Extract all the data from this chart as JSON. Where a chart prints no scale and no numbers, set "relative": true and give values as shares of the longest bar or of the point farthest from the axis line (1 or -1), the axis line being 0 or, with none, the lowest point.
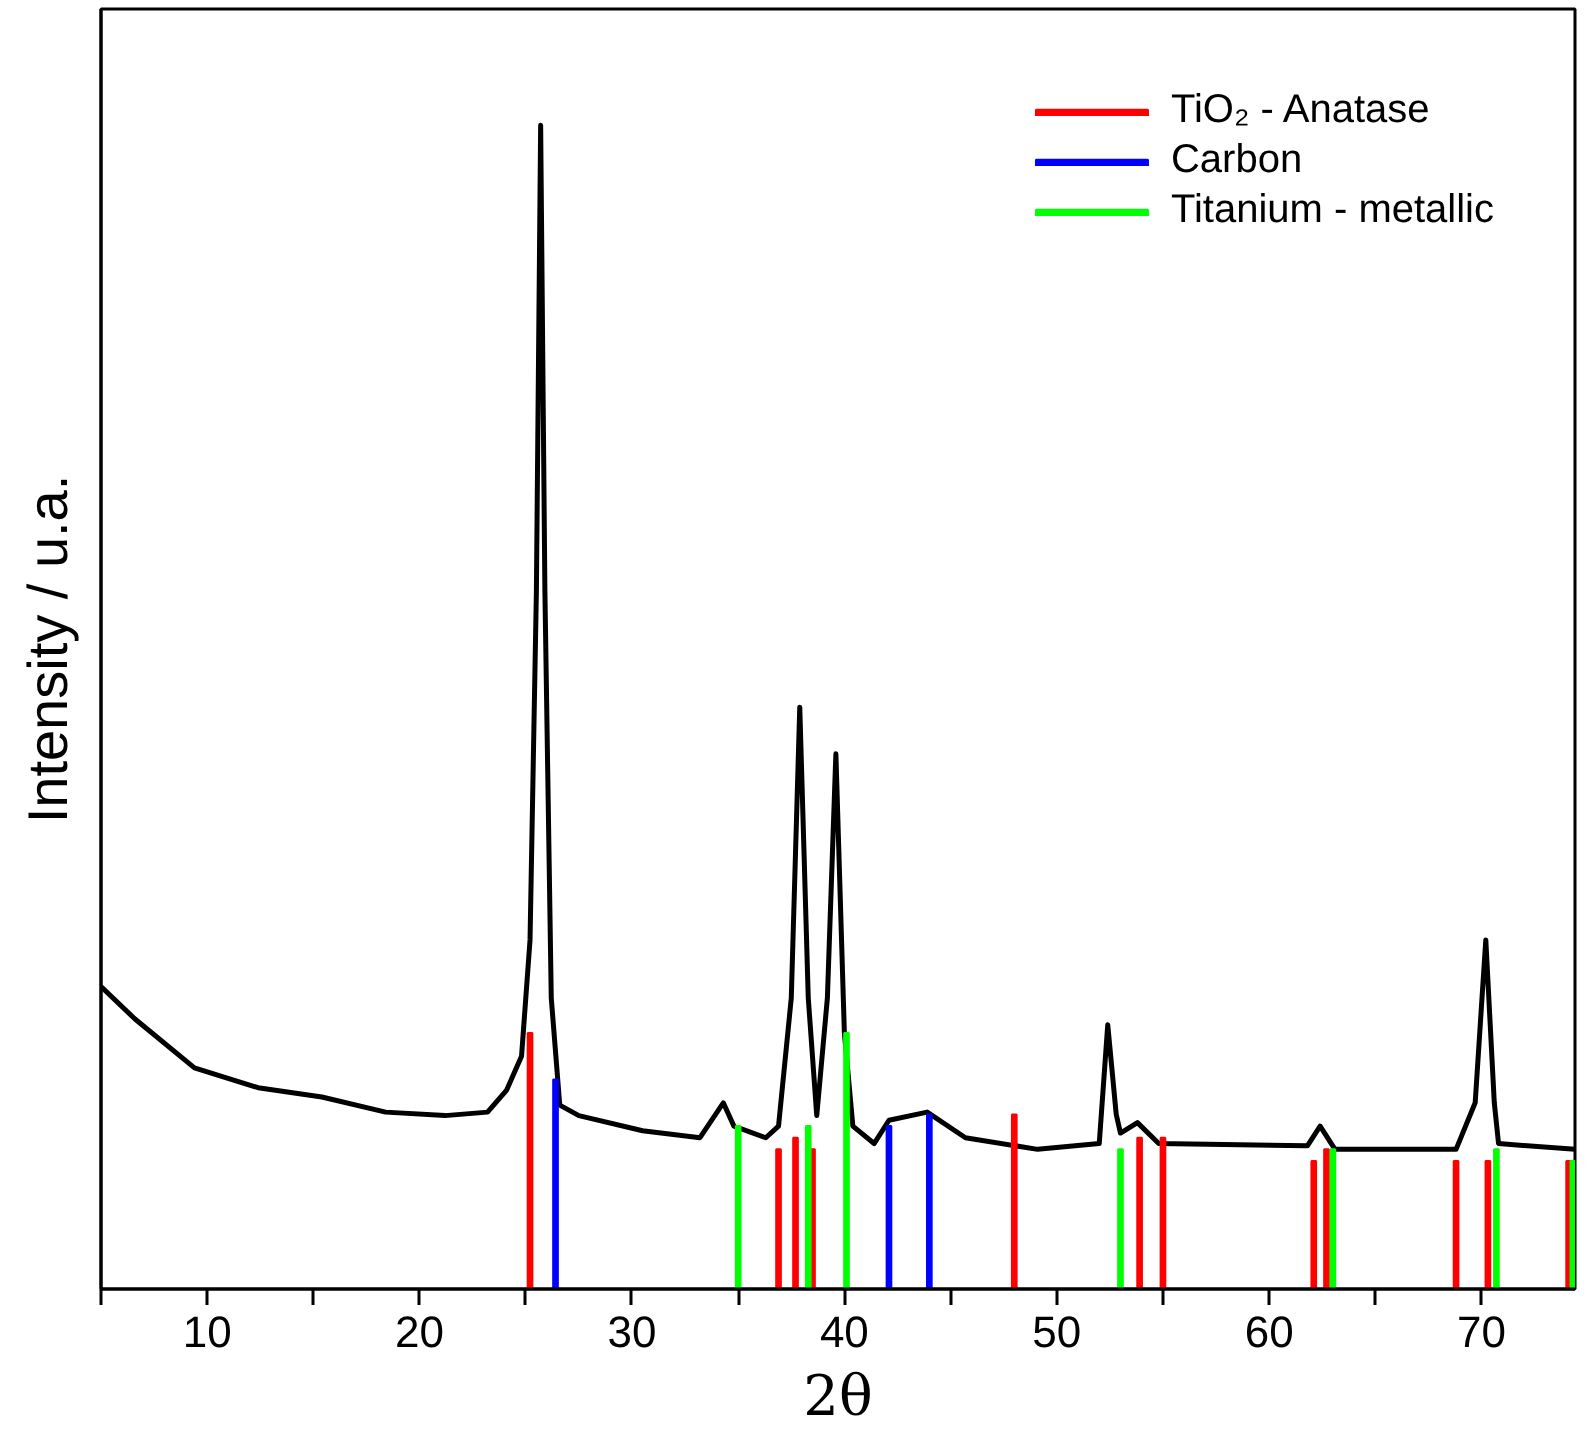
{
  "chart_data": {
    "type": "line",
    "relative": true,
    "xlabel": "2θ",
    "ylabel": "Intensity / u.a.",
    "xlim": [
      5,
      74.4
    ],
    "xticks": [
      {
        "value": 5,
        "label": null
      },
      10,
      {
        "value": 15,
        "label": null
      },
      20,
      {
        "value": 25,
        "label": null
      },
      30,
      {
        "value": 35,
        "label": null
      },
      40,
      {
        "value": 45,
        "label": null
      },
      50,
      {
        "value": 55,
        "label": null
      },
      60,
      {
        "value": 65,
        "label": null
      },
      70
    ],
    "legend": "top right",
    "grid": false,
    "series": [
      {
        "color": "#000000",
        "x": [
          5,
          6.6,
          9.4,
          12.4,
          15.4,
          18.4,
          21.2,
          23.2,
          24.1,
          24.8,
          25.2,
          25.5,
          25.7,
          25.9,
          26.2,
          26.6,
          27.5,
          30.5,
          33.2,
          34.3,
          34.8,
          36.3,
          36.9,
          37.5,
          37.9,
          38.3,
          38.7,
          39.2,
          39.6,
          40.0,
          40.4,
          41.4,
          42.1,
          43.9,
          45.7,
          49.1,
          52.0,
          52.4,
          52.8,
          53.0,
          53.8,
          54.8,
          61.8,
          62.4,
          63.1,
          68.8,
          69.7,
          70.2,
          70.6,
          70.8,
          74.4
        ],
        "values": [
          0.26,
          0.232,
          0.19,
          0.173,
          0.165,
          0.152,
          0.149,
          0.152,
          0.171,
          0.2,
          0.3,
          0.6,
          1.0,
          0.6,
          0.25,
          0.158,
          0.149,
          0.136,
          0.13,
          0.16,
          0.14,
          0.13,
          0.14,
          0.25,
          0.5,
          0.25,
          0.149,
          0.25,
          0.46,
          0.22,
          0.14,
          0.125,
          0.145,
          0.152,
          0.13,
          0.12,
          0.125,
          0.227,
          0.15,
          0.134,
          0.143,
          0.125,
          0.123,
          0.14,
          0.12,
          0.12,
          0.16,
          0.3,
          0.16,
          0.125,
          0.12
        ]
      },
      {
        "type": "bar",
        "name": "TiO₂ - Anatase",
        "color": "#ff0000",
        "x": [
          25.2,
          36.9,
          37.7,
          38.5,
          48.0,
          53.9,
          55.0,
          62.1,
          62.7,
          68.8,
          70.3,
          74.1
        ],
        "values": [
          0.22,
          0.12,
          0.13,
          0.12,
          0.15,
          0.13,
          0.13,
          0.11,
          0.12,
          0.11,
          0.11,
          0.11
        ]
      },
      {
        "type": "bar",
        "name": "Carbon",
        "color": "#0000ff",
        "x": [
          26.4,
          42.1,
          44.0
        ],
        "values": [
          0.18,
          0.14,
          0.15
        ]
      },
      {
        "type": "bar",
        "name": "Titanium - metallic",
        "color": "#00ff00",
        "x": [
          35.0,
          38.3,
          40.1,
          53.0,
          63.0,
          70.7,
          74.3
        ],
        "values": [
          0.14,
          0.14,
          0.22,
          0.12,
          0.12,
          0.12,
          0.11
        ]
      }
    ]
  }
}
